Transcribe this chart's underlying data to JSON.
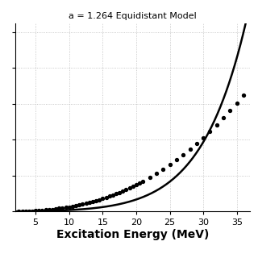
{
  "title": "a = 1.264 Equidistant Model",
  "xlabel": "Excitation Energy (MeV)",
  "xlim": [
    2.0,
    37.0
  ],
  "xticks": [
    5,
    10,
    15,
    20,
    25,
    30,
    35
  ],
  "background_color": "#ffffff",
  "grid_color": "#bbbbbb",
  "a_param": 1.264,
  "dots_x": [
    2.5,
    3.0,
    3.5,
    4.0,
    4.5,
    5.0,
    5.5,
    6.0,
    6.5,
    7.0,
    7.5,
    8.0,
    8.5,
    9.0,
    9.5,
    10.0,
    10.5,
    11.0,
    11.5,
    12.0,
    12.5,
    13.0,
    13.5,
    14.0,
    14.5,
    15.0,
    15.5,
    16.0,
    16.5,
    17.0,
    17.5,
    18.0,
    18.5,
    19.0,
    19.5,
    20.0,
    20.5,
    21.0,
    22.0,
    23.0,
    24.0,
    25.0,
    26.0,
    27.0,
    28.0,
    29.0,
    30.0,
    31.0,
    32.0,
    33.0,
    34.0,
    35.0,
    36.0
  ],
  "curve_color": "#000000",
  "dot_color": "#000000",
  "dot_size": 8,
  "curve_linewidth": 1.8,
  "title_fontsize": 8,
  "xlabel_fontsize": 10,
  "tick_labelsize": 8
}
